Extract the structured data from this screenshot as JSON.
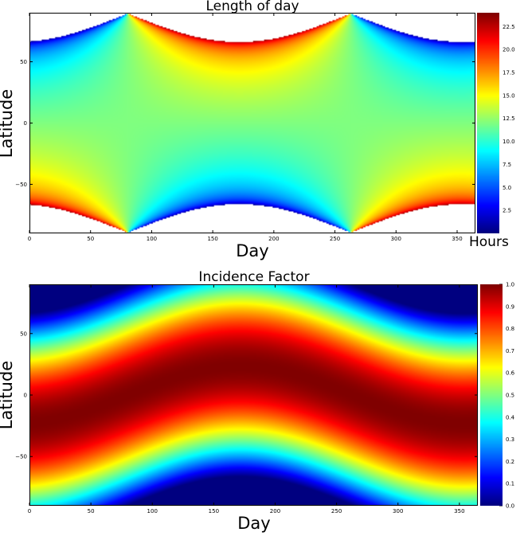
{
  "chart_data": [
    {
      "type": "heatmap",
      "title": "Length of day",
      "xlabel": "Day",
      "ylabel": "Latitude",
      "colorbar_label": "Hours",
      "colormap": "jet",
      "xlim": [
        0,
        365
      ],
      "ylim": [
        -90,
        90
      ],
      "x_ticks": [
        0,
        50,
        100,
        150,
        200,
        250,
        300,
        350
      ],
      "y_ticks": [
        -50,
        0,
        50
      ],
      "y_tick_labels": [
        "−50",
        "0",
        "50"
      ],
      "colorbar_range": [
        0,
        24
      ],
      "colorbar_ticks": [
        2.5,
        5.0,
        7.5,
        10.0,
        12.5,
        15.0,
        17.5,
        20.0,
        22.5
      ],
      "colorbar_tick_labels": [
        "2.5",
        "5.0",
        "7.5",
        "10.0",
        "12.5",
        "15.0",
        "17.5",
        "20.0",
        "22.5"
      ],
      "polar_regions_blank": true,
      "equinox_days": [
        80,
        265
      ],
      "solstice_day": 172
    },
    {
      "type": "heatmap",
      "title": "Incidence Factor",
      "xlabel": "Day",
      "ylabel": "Latitude",
      "colormap": "jet",
      "xlim": [
        0,
        365
      ],
      "ylim": [
        -90,
        90
      ],
      "x_ticks": [
        0,
        50,
        100,
        150,
        200,
        250,
        300,
        350
      ],
      "y_ticks": [
        -50,
        0,
        50
      ],
      "y_tick_labels": [
        "−50",
        "0",
        "50"
      ],
      "colorbar_range": [
        0,
        1
      ],
      "colorbar_ticks": [
        0.0,
        0.1,
        0.2,
        0.3,
        0.4,
        0.5,
        0.6,
        0.7,
        0.8,
        0.9,
        1.0
      ],
      "colorbar_tick_labels": [
        "0.0",
        "0.1",
        "0.2",
        "0.3",
        "0.4",
        "0.5",
        "0.6",
        "0.7",
        "0.8",
        "0.9",
        "1.0"
      ],
      "peak_latitude_range": [
        -23.5,
        23.5
      ],
      "peak_day": 172
    }
  ]
}
